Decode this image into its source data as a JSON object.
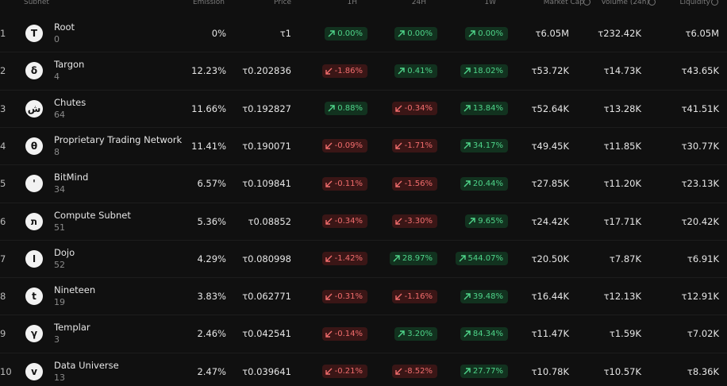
{
  "header": {
    "columns": [
      "Subnet",
      "Emission",
      "Price",
      "1H",
      "24H",
      "1W",
      "Market Cap",
      "Volume (24h)",
      "Liquidity"
    ]
  },
  "table": {
    "rows": [
      {
        "rank": 1,
        "icon": "T",
        "name": "Root",
        "netuid": 0,
        "emission": "0%",
        "price": "τ1",
        "change_1h": "0.00%",
        "change_24h": "0.00%",
        "change_1w": "0.00%",
        "market_cap": "τ6.05M",
        "volume_24h": "τ232.42K",
        "liquidity": "τ6.05M"
      },
      {
        "rank": 2,
        "icon": "δ",
        "name": "Targon",
        "netuid": 4,
        "emission": "12.23%",
        "price": "τ0.202836",
        "change_1h": "-1.86%",
        "change_24h": "0.41%",
        "change_1w": "18.02%",
        "market_cap": "τ53.72K",
        "volume_24h": "τ14.73K",
        "liquidity": "τ43.65K"
      },
      {
        "rank": 3,
        "icon": "ش",
        "name": "Chutes",
        "netuid": 64,
        "emission": "11.66%",
        "price": "τ0.192827",
        "change_1h": "0.88%",
        "change_24h": "-0.34%",
        "change_1w": "13.84%",
        "market_cap": "τ52.64K",
        "volume_24h": "τ13.28K",
        "liquidity": "τ41.51K"
      },
      {
        "rank": 4,
        "icon": "θ",
        "name": "Proprietary Trading Network",
        "netuid": 8,
        "emission": "11.41%",
        "price": "τ0.190071",
        "change_1h": "-0.09%",
        "change_24h": "-1.71%",
        "change_1w": "34.17%",
        "market_cap": "τ49.45K",
        "volume_24h": "τ11.85K",
        "liquidity": "τ30.77K"
      },
      {
        "rank": 5,
        "icon": "'",
        "name": "BitMind",
        "netuid": 34,
        "emission": "6.57%",
        "price": "τ0.109841",
        "change_1h": "-0.11%",
        "change_24h": "-1.56%",
        "change_1w": "20.44%",
        "market_cap": "τ27.85K",
        "volume_24h": "τ11.20K",
        "liquidity": "τ23.13K"
      },
      {
        "rank": 6,
        "icon": "ת",
        "name": "Compute Subnet",
        "netuid": 51,
        "emission": "5.36%",
        "price": "τ0.08852",
        "change_1h": "-0.34%",
        "change_24h": "-3.30%",
        "change_1w": "9.65%",
        "market_cap": "τ24.42K",
        "volume_24h": "τ17.71K",
        "liquidity": "τ20.42K"
      },
      {
        "rank": 7,
        "icon": "ا",
        "name": "Dojo",
        "netuid": 52,
        "emission": "4.29%",
        "price": "τ0.080998",
        "change_1h": "-1.42%",
        "change_24h": "28.97%",
        "change_1w": "544.07%",
        "market_cap": "τ20.50K",
        "volume_24h": "τ7.87K",
        "liquidity": "τ6.91K"
      },
      {
        "rank": 8,
        "icon": "t",
        "name": "Nineteen",
        "netuid": 19,
        "emission": "3.83%",
        "price": "τ0.062771",
        "change_1h": "-0.31%",
        "change_24h": "-1.16%",
        "change_1w": "39.48%",
        "market_cap": "τ16.44K",
        "volume_24h": "τ12.13K",
        "liquidity": "τ12.91K"
      },
      {
        "rank": 9,
        "icon": "γ",
        "name": "Templar",
        "netuid": 3,
        "emission": "2.46%",
        "price": "τ0.042541",
        "change_1h": "-0.14%",
        "change_24h": "3.20%",
        "change_1w": "84.34%",
        "market_cap": "τ11.47K",
        "volume_24h": "τ1.59K",
        "liquidity": "τ7.02K"
      },
      {
        "rank": 10,
        "icon": "v",
        "name": "Data Universe",
        "netuid": 13,
        "emission": "2.47%",
        "price": "τ0.039641",
        "change_1h": "-0.21%",
        "change_24h": "-8.52%",
        "change_1w": "27.77%",
        "market_cap": "τ10.78K",
        "volume_24h": "τ10.57K",
        "liquidity": "τ8.36K"
      }
    ]
  }
}
